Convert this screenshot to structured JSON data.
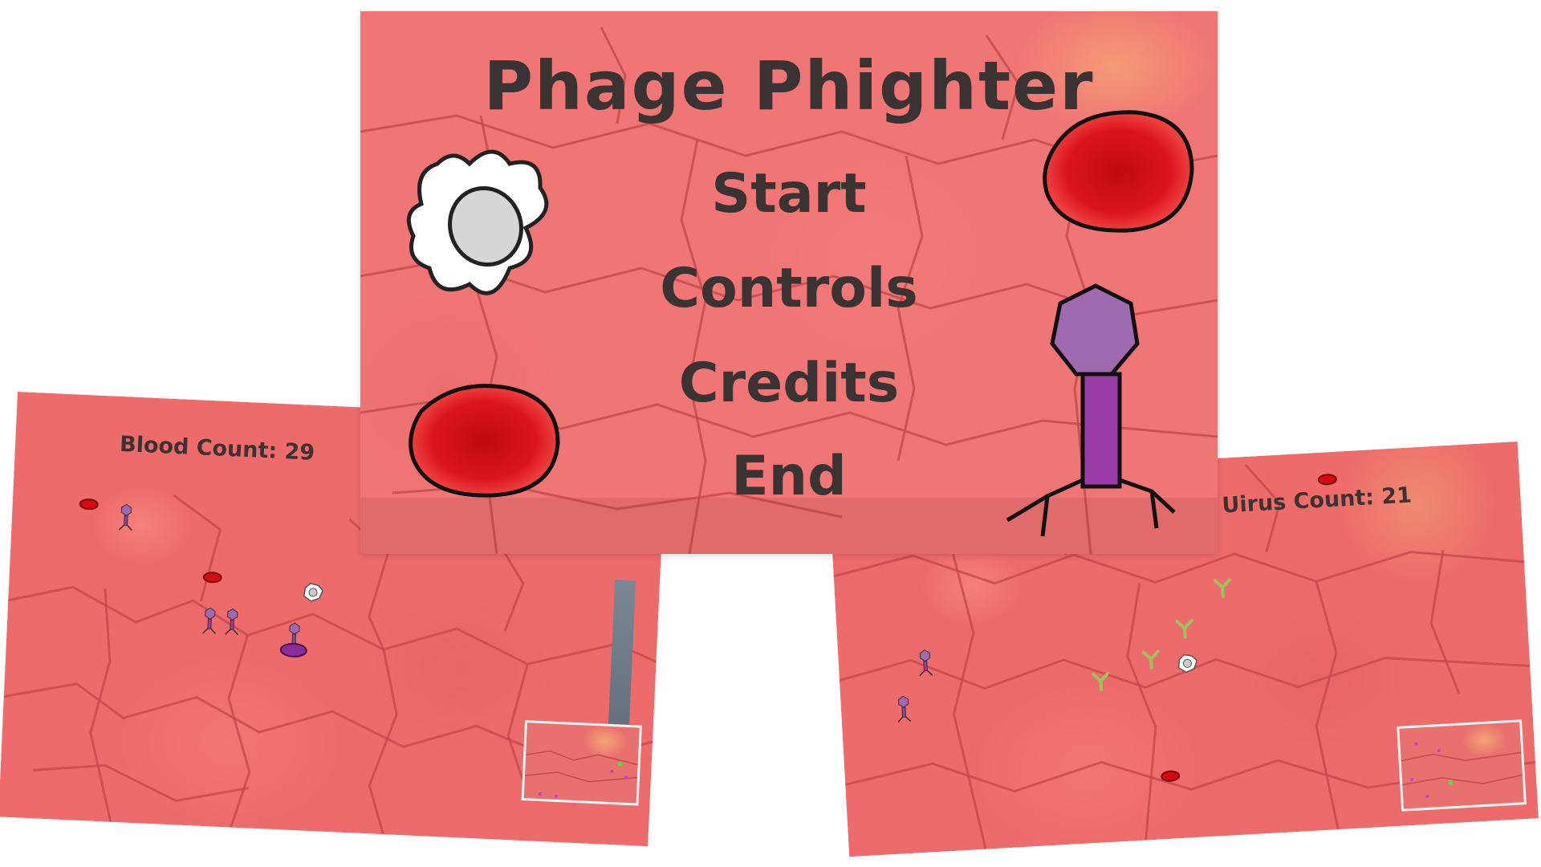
{
  "menu": {
    "title": "Phage Phighter",
    "items": [
      {
        "id": "start",
        "label": "Start"
      },
      {
        "id": "controls",
        "label": "Controls"
      },
      {
        "id": "credits",
        "label": "Credits"
      },
      {
        "id": "end",
        "label": "End"
      }
    ],
    "icons": [
      "white-blood-cell-icon",
      "red-blood-cell-icon",
      "bacteriophage-icon"
    ]
  },
  "left_game": {
    "hud_label": "Blood Count: 29"
  },
  "right_game": {
    "hud_label": "Uirus Count: 21"
  },
  "colors": {
    "tissue": "#ee6b6b",
    "red_cell": "#d40b10",
    "phage_head": "#a06ab0",
    "phage_body": "#9a3ca8",
    "antibody": "#9cc45a",
    "text": "#3a3333"
  }
}
